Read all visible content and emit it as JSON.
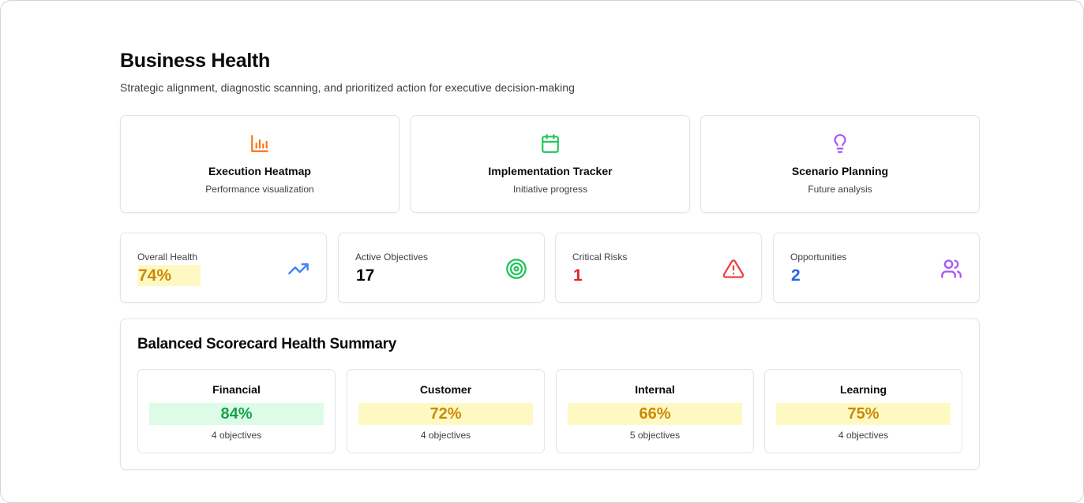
{
  "header": {
    "title": "Business Health",
    "subtitle": "Strategic alignment, diagnostic scanning, and prioritized action for executive decision-making"
  },
  "nav_cards": [
    {
      "title": "Execution Heatmap",
      "subtitle": "Performance visualization",
      "icon": "bar-chart-icon",
      "color": "#f97316"
    },
    {
      "title": "Implementation Tracker",
      "subtitle": "Initiative progress",
      "icon": "calendar-icon",
      "color": "#22c55e"
    },
    {
      "title": "Scenario Planning",
      "subtitle": "Future analysis",
      "icon": "lightbulb-icon",
      "color": "#a855f7"
    }
  ],
  "stats": [
    {
      "label": "Overall Health",
      "value": "74%",
      "value_color": "#ca8a04",
      "icon": "trending-up-icon",
      "icon_color": "#3b82f6"
    },
    {
      "label": "Active Objectives",
      "value": "17",
      "value_color": "#0a0a0a",
      "icon": "target-icon",
      "icon_color": "#22c55e"
    },
    {
      "label": "Critical Risks",
      "value": "1",
      "value_color": "#dc2626",
      "icon": "alert-triangle-icon",
      "icon_color": "#ef4444"
    },
    {
      "label": "Opportunities",
      "value": "2",
      "value_color": "#2563eb",
      "icon": "users-icon",
      "icon_color": "#a855f7"
    }
  ],
  "summary": {
    "title": "Balanced Scorecard Health Summary",
    "perspectives": [
      {
        "name": "Financial",
        "score": "84%",
        "objectives": "4 objectives",
        "status": "good"
      },
      {
        "name": "Customer",
        "score": "72%",
        "objectives": "4 objectives",
        "status": "warning"
      },
      {
        "name": "Internal",
        "score": "66%",
        "objectives": "5 objectives",
        "status": "warning"
      },
      {
        "name": "Learning",
        "score": "75%",
        "objectives": "4 objectives",
        "status": "warning"
      }
    ]
  }
}
